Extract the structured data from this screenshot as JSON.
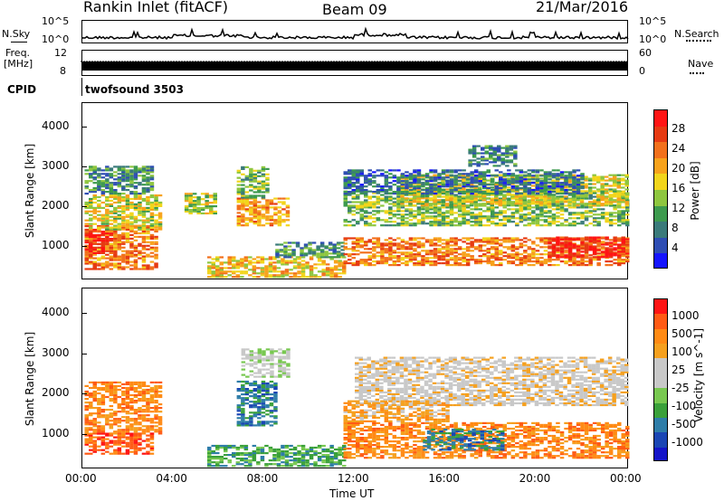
{
  "header": {
    "station": "Rankin Inlet (fitACF)",
    "beam": "Beam 09",
    "date": "21/Mar/2016"
  },
  "strips": {
    "nsky_label": "N.Sky",
    "nsky_ticks": [
      "10^5",
      "10^0"
    ],
    "nsearch_label": "N.Search",
    "nsearch_ticks": [
      "10^5",
      "10^0"
    ],
    "freq_label_1": "Freq.",
    "freq_label_2": "[MHz]",
    "freq_ticks": [
      "12",
      "8"
    ],
    "nave_label": "Nave",
    "nave_ticks": [
      "60",
      "0"
    ],
    "cpid_label": "CPID",
    "cpid_value": "twofsound 3503"
  },
  "colors": {
    "power": [
      "#1414ff",
      "#2e4db3",
      "#3a7a7a",
      "#3d9a4e",
      "#8ec63f",
      "#f2d51b",
      "#f7a21b",
      "#f2701b",
      "#e63a12",
      "#ff1414"
    ],
    "velocity": [
      "#ff1414",
      "#ff5a14",
      "#ff8a14",
      "#f5a01e",
      "#c8c8c8",
      "#c8c8c8",
      "#78c850",
      "#3aa03a",
      "#2e7da8",
      "#1a46b4",
      "#1414c8"
    ]
  },
  "chart_data": [
    {
      "type": "heatmap",
      "name": "power",
      "title": "",
      "xlabel": "Time UT",
      "ylabel": "Slant Range [km]",
      "xticks": [
        "00:00",
        "04:00",
        "08:00",
        "12:00",
        "16:00",
        "20:00",
        "00:00"
      ],
      "yticks": [
        "1000",
        "2000",
        "3000",
        "4000"
      ],
      "xlim_hours": [
        0,
        24
      ],
      "ylim_km": [
        180,
        4600
      ],
      "colorbar_label": "Power [dB]",
      "colorbar_ticks": [
        "4",
        "8",
        "12",
        "16",
        "20",
        "24",
        "28"
      ],
      "colorbar_range": [
        0,
        30
      ],
      "regions": [
        {
          "t0": 0.1,
          "t1": 3.2,
          "r0": 400,
          "r1": 1500,
          "v": 22
        },
        {
          "t0": 0.1,
          "t1": 1.2,
          "r0": 800,
          "r1": 1400,
          "v": 27
        },
        {
          "t0": 0.1,
          "t1": 3.5,
          "r0": 1400,
          "r1": 2300,
          "v": 16
        },
        {
          "t0": 0.1,
          "t1": 3.0,
          "r0": 2300,
          "r1": 3000,
          "v": 9
        },
        {
          "t0": 4.5,
          "t1": 5.8,
          "r0": 1800,
          "r1": 2300,
          "v": 14
        },
        {
          "t0": 6.8,
          "t1": 9.0,
          "r0": 1500,
          "r1": 2200,
          "v": 20
        },
        {
          "t0": 6.8,
          "t1": 8.2,
          "r0": 2200,
          "r1": 3000,
          "v": 12
        },
        {
          "t0": 5.5,
          "t1": 11.5,
          "r0": 200,
          "r1": 700,
          "v": 18
        },
        {
          "t0": 8.5,
          "t1": 11.5,
          "r0": 700,
          "r1": 1100,
          "v": 10
        },
        {
          "t0": 11.5,
          "t1": 24.0,
          "r0": 500,
          "r1": 1200,
          "v": 22
        },
        {
          "t0": 20.5,
          "t1": 24.0,
          "r0": 700,
          "r1": 1200,
          "v": 28
        },
        {
          "t0": 11.5,
          "t1": 24.0,
          "r0": 1500,
          "r1": 2400,
          "v": 13
        },
        {
          "t0": 14.0,
          "t1": 24.0,
          "r0": 2000,
          "r1": 2800,
          "v": 16
        },
        {
          "t0": 11.5,
          "t1": 22.0,
          "r0": 2300,
          "r1": 2900,
          "v": 7
        },
        {
          "t0": 17.0,
          "t1": 19.0,
          "r0": 3000,
          "r1": 3500,
          "v": 8
        }
      ]
    },
    {
      "type": "heatmap",
      "name": "velocity",
      "title": "",
      "xlabel": "Time UT",
      "ylabel": "Slant Range [km]",
      "xticks": [
        "00:00",
        "04:00",
        "08:00",
        "12:00",
        "16:00",
        "20:00",
        "00:00"
      ],
      "yticks": [
        "1000",
        "2000",
        "3000",
        "4000"
      ],
      "xlim_hours": [
        0,
        24
      ],
      "ylim_km": [
        180,
        4600
      ],
      "colorbar_label": "Velocity [m s^-1]",
      "colorbar_ticks": [
        "1000",
        "500",
        "100",
        "25",
        "-25",
        "-100",
        "-500",
        "-1000"
      ],
      "regions": [
        {
          "t0": 0.1,
          "t1": 3.5,
          "r0": 1000,
          "r1": 2300,
          "c": 2
        },
        {
          "t0": 0.1,
          "t1": 3.0,
          "r0": 500,
          "r1": 1000,
          "c": 1
        },
        {
          "t0": 6.8,
          "t1": 8.5,
          "r0": 1200,
          "r1": 2300,
          "c": 8
        },
        {
          "t0": 7.0,
          "t1": 9.0,
          "r0": 2400,
          "r1": 3100,
          "c": 5
        },
        {
          "t0": 5.5,
          "t1": 11.5,
          "r0": 200,
          "r1": 700,
          "c": 7
        },
        {
          "t0": 11.5,
          "t1": 24.0,
          "r0": 400,
          "r1": 1300,
          "c": 2
        },
        {
          "t0": 15.0,
          "t1": 18.5,
          "r0": 600,
          "r1": 1100,
          "c": 8
        },
        {
          "t0": 12.0,
          "t1": 24.0,
          "r0": 1700,
          "r1": 2900,
          "c": 4
        },
        {
          "t0": 11.5,
          "t1": 16.0,
          "r0": 1300,
          "r1": 1800,
          "c": 3
        }
      ]
    }
  ]
}
